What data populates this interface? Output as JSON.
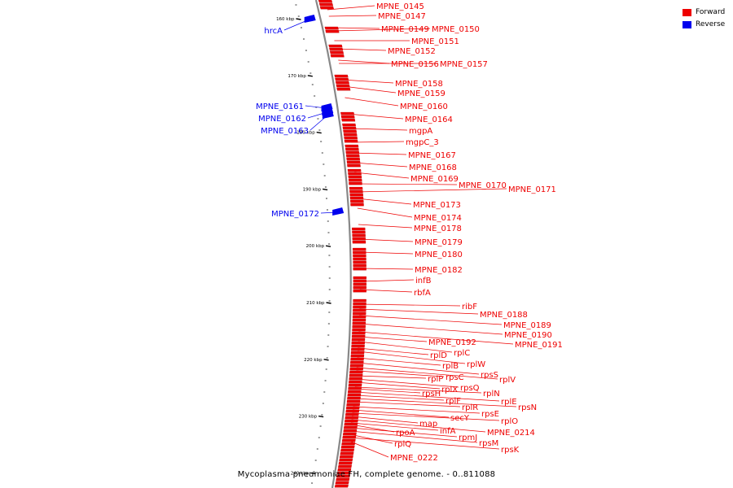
{
  "legend": {
    "forward_label": "Forward",
    "reverse_label": "Reverse",
    "forward_color": "#ee0000",
    "reverse_color": "#0000ee"
  },
  "caption": "Mycoplasma pneumoniae FH, complete genome. - 0..811088",
  "colors": {
    "forward": "#ee0000",
    "reverse": "#0000ee",
    "backbone": "#888888",
    "ticks": "#000000"
  },
  "ticks": [
    {
      "label": "160 kbp",
      "kbp": 160
    },
    {
      "label": "170 kbp",
      "kbp": 170
    },
    {
      "label": "180 kbp",
      "kbp": 180
    },
    {
      "label": "190 kbp",
      "kbp": 190
    },
    {
      "label": "200 kbp",
      "kbp": 200
    },
    {
      "label": "210 kbp",
      "kbp": 210
    },
    {
      "label": "220 kbp",
      "kbp": 220
    },
    {
      "label": "230 kbp",
      "kbp": 230
    },
    {
      "label": "240 kbp",
      "kbp": 240
    }
  ],
  "forward_genes": [
    "MPNE_0145",
    "MPNE_0147",
    "MPNE_0149",
    "MPNE_0150",
    "MPNE_0151",
    "MPNE_0152",
    "MPNE_0156",
    "MPNE_0157",
    "MPNE_0158",
    "MPNE_0159",
    "MPNE_0160",
    "MPNE_0164",
    "mgpA",
    "mgpC_3",
    "MPNE_0167",
    "MPNE_0168",
    "MPNE_0169",
    "MPNE_0170",
    "MPNE_0171",
    "MPNE_0173",
    "MPNE_0174",
    "MPNE_0178",
    "MPNE_0179",
    "MPNE_0180",
    "MPNE_0182",
    "infB",
    "rbfA",
    "ribF",
    "MPNE_0188",
    "MPNE_0189",
    "MPNE_0190",
    "MPNE_0191",
    "MPNE_0192",
    "rplC",
    "rplD",
    "rplW",
    "rplB",
    "rpsS",
    "rplV",
    "rpsC",
    "rplP",
    "rpsQ",
    "rplX",
    "rplN",
    "rpsH",
    "rplE",
    "rplF",
    "rpsN",
    "rplR",
    "rpsE",
    "secY",
    "rplO",
    "map",
    "MPNE_0214",
    "infA",
    "rpoA",
    "rpmJ",
    "rpsM",
    "rplQ",
    "rpsK",
    "MPNE_0222"
  ],
  "reverse_genes": [
    "hrcA",
    "MPNE_0161",
    "MPNE_0162",
    "MPNE_0163",
    "MPNE_0172"
  ]
}
